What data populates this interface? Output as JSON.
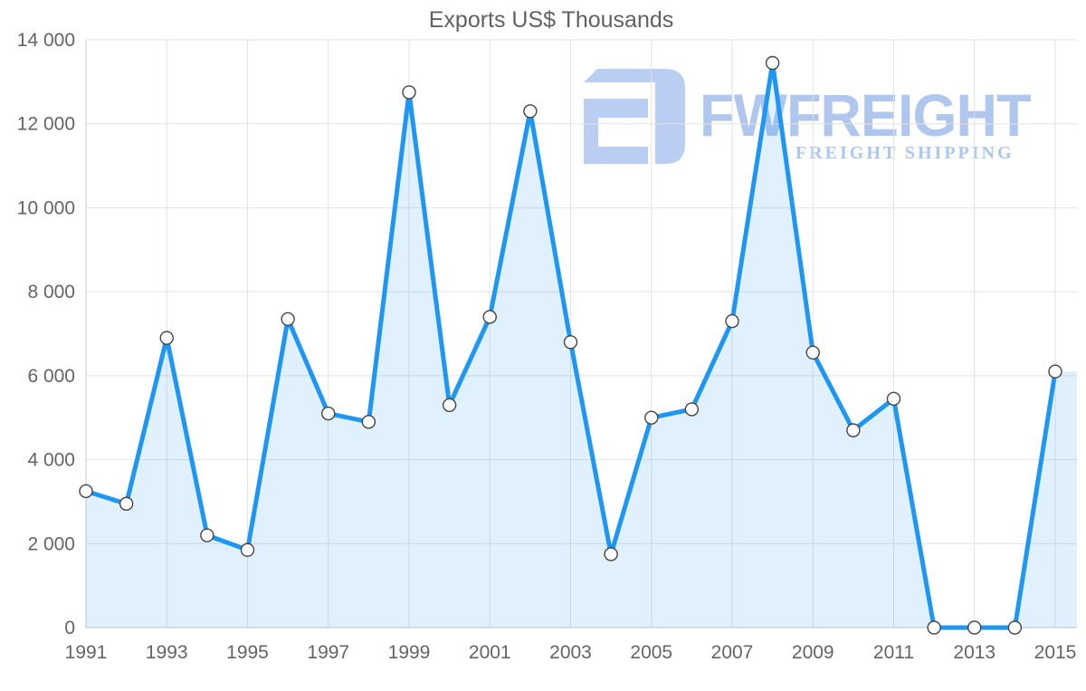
{
  "title": "Exports US$ Thousands",
  "watermark": {
    "brand": "FWFREIGHT",
    "tagline": "FREIGHT SHIPPING",
    "icon_color": "#b4caf1",
    "brand_color": "#a9c3ee",
    "tagline_color": "#a3c3f1"
  },
  "chart_data": {
    "type": "area",
    "title": "Exports US$ Thousands",
    "xlabel": "",
    "ylabel": "US$ Thousands",
    "x": [
      1991,
      1992,
      1993,
      1994,
      1995,
      1996,
      1997,
      1998,
      1999,
      2000,
      2001,
      2002,
      2003,
      2004,
      2005,
      2006,
      2007,
      2008,
      2009,
      2010,
      2011,
      2012,
      2013,
      2014,
      2015
    ],
    "values": [
      3250,
      2950,
      6900,
      2200,
      1850,
      7350,
      5100,
      4900,
      12750,
      5300,
      7400,
      12300,
      6800,
      1750,
      5000,
      5200,
      7300,
      13450,
      6550,
      4700,
      5450,
      0,
      0,
      0,
      6100
    ],
    "x_tick_labels": [
      "1991",
      "1993",
      "1995",
      "1997",
      "1999",
      "2001",
      "2003",
      "2005",
      "2007",
      "2009",
      "2011",
      "2013",
      "2015"
    ],
    "y_ticks": [
      0,
      2000,
      4000,
      6000,
      8000,
      10000,
      12000,
      14000
    ],
    "y_tick_labels": [
      "0",
      "2 000",
      "4 000",
      "6 000",
      "8 000",
      "10 000",
      "12 000",
      "14 000"
    ],
    "ylim": [
      0,
      14000
    ],
    "grid": true,
    "legend": "none",
    "line_color": "#1e96f3",
    "fill_color": "rgba(33,150,243,0.14)",
    "marker_style": "white circle with dark outline",
    "gridline_color": "#e2e2e2",
    "axis_color": "#c9c9c9",
    "tick_label_color": "#646464"
  }
}
